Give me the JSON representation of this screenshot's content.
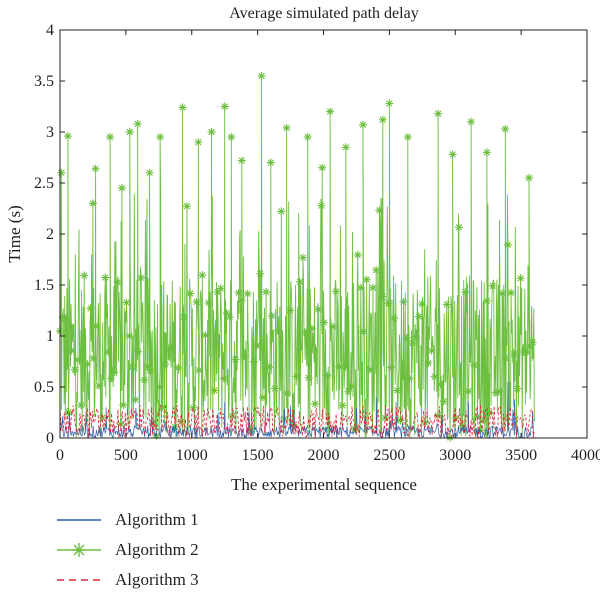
{
  "chart_data": {
    "type": "line",
    "title": "Average simulated path delay",
    "xlabel": "The experimental sequence",
    "ylabel": "Time (s)",
    "xlim": [
      0,
      4000
    ],
    "ylim": [
      0,
      4
    ],
    "x_ticks": [
      0,
      500,
      1000,
      1500,
      2000,
      2500,
      3000,
      3500,
      4000
    ],
    "y_ticks": [
      0,
      0.5,
      1,
      1.5,
      2,
      2.5,
      3,
      3.5,
      4
    ],
    "x_tick_labels": [
      "0",
      "500",
      "1000",
      "1500",
      "2000",
      "2500",
      "3000",
      "3500",
      "4000"
    ],
    "y_tick_labels": [
      "0",
      "0.5",
      "1",
      "1.5",
      "2",
      "2.5",
      "3",
      "3.5",
      "4"
    ],
    "grid": false,
    "legend_position": "bottom-left, below plot",
    "series": [
      {
        "name": "Algorithm 1",
        "color": "#2e5fa8",
        "style": "solid",
        "x_range": [
          0,
          3600
        ],
        "typical_range": [
          0,
          0.12
        ],
        "peaks": [
          {
            "x": 350,
            "y": 0.3
          },
          {
            "x": 1250,
            "y": 0.35
          },
          {
            "x": 1750,
            "y": 0.32
          },
          {
            "x": 2400,
            "y": 0.4
          },
          {
            "x": 2550,
            "y": 0.35
          },
          {
            "x": 3100,
            "y": 0.35
          },
          {
            "x": 3400,
            "y": 0.55
          },
          {
            "x": 3450,
            "y": 0.38
          }
        ]
      },
      {
        "name": "Algorithm 2",
        "color": "#6cbf3f",
        "style": "solid-with-asterisk-markers",
        "x_range": [
          0,
          3600
        ],
        "typical_range": [
          0,
          1.6
        ],
        "peaks": [
          {
            "x": 10,
            "y": 2.6
          },
          {
            "x": 60,
            "y": 2.96
          },
          {
            "x": 250,
            "y": 2.3
          },
          {
            "x": 270,
            "y": 2.64
          },
          {
            "x": 380,
            "y": 2.95
          },
          {
            "x": 470,
            "y": 2.45
          },
          {
            "x": 530,
            "y": 3.0
          },
          {
            "x": 590,
            "y": 3.08
          },
          {
            "x": 680,
            "y": 2.6
          },
          {
            "x": 760,
            "y": 2.95
          },
          {
            "x": 930,
            "y": 3.24
          },
          {
            "x": 1050,
            "y": 2.9
          },
          {
            "x": 1150,
            "y": 3.0
          },
          {
            "x": 1250,
            "y": 3.25
          },
          {
            "x": 1300,
            "y": 2.95
          },
          {
            "x": 1380,
            "y": 2.72
          },
          {
            "x": 1530,
            "y": 3.55
          },
          {
            "x": 1600,
            "y": 2.7
          },
          {
            "x": 1720,
            "y": 3.04
          },
          {
            "x": 1880,
            "y": 2.95
          },
          {
            "x": 1990,
            "y": 2.65
          },
          {
            "x": 2050,
            "y": 3.2
          },
          {
            "x": 2170,
            "y": 2.85
          },
          {
            "x": 2300,
            "y": 3.07
          },
          {
            "x": 2450,
            "y": 3.12
          },
          {
            "x": 2500,
            "y": 3.28
          },
          {
            "x": 2640,
            "y": 2.95
          },
          {
            "x": 2870,
            "y": 3.18
          },
          {
            "x": 2980,
            "y": 2.78
          },
          {
            "x": 3120,
            "y": 3.1
          },
          {
            "x": 3240,
            "y": 2.8
          },
          {
            "x": 3380,
            "y": 3.03
          },
          {
            "x": 3560,
            "y": 2.55
          }
        ]
      },
      {
        "name": "Algorithm 3",
        "color": "#d7263d",
        "style": "dashed",
        "x_range": [
          0,
          3600
        ],
        "typical_range": [
          0,
          0.3
        ],
        "peaks": [
          {
            "x": 100,
            "y": 0.32
          },
          {
            "x": 800,
            "y": 0.33
          },
          {
            "x": 1500,
            "y": 0.3
          },
          {
            "x": 2300,
            "y": 0.32
          },
          {
            "x": 3000,
            "y": 0.3
          }
        ]
      }
    ]
  }
}
